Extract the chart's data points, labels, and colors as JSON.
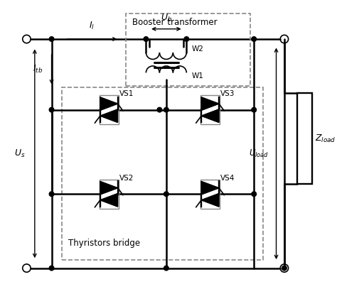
{
  "bg_color": "#ffffff",
  "line_color": "#000000",
  "dashed_color": "#888888",
  "labels": {
    "booster_transformer": "Booster transformer",
    "thyristors_bridge": "Thyristors bridge",
    "W1": "W1",
    "W2": "W2",
    "VS1": "VS1",
    "VS2": "VS2",
    "VS3": "VS3",
    "VS4": "VS4"
  }
}
